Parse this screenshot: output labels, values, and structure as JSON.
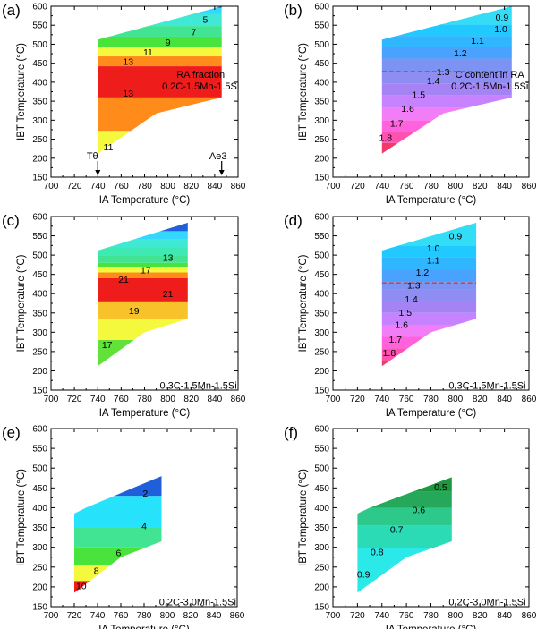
{
  "figure": {
    "panels": [
      {
        "label": "(a)",
        "xlabel": "IA Temperature (°C)",
        "ylabel": "IBT Temperature (°C)",
        "annotation_lines": [
          "RA fraction",
          "0.2C-1.5Mn-1.5Si"
        ],
        "markers": [
          "Tθ",
          "Ae3"
        ],
        "contour_labels": [
          "5",
          "7",
          "9",
          "11",
          "13",
          "13",
          "11"
        ]
      },
      {
        "label": "(b)",
        "xlabel": "IA Temperature (°C)",
        "ylabel": "IBT Temperature (°C)",
        "annotation_lines": [
          "C content in RA",
          "0.2C-1.5Mn-1.5Si"
        ],
        "contour_labels": [
          "0.9",
          "1.0",
          "1.1",
          "1.2",
          "1.3",
          "1.4",
          "1.5",
          "1.6",
          "1.7",
          "1.8"
        ]
      },
      {
        "label": "(c)",
        "xlabel": "IA Temperature (°C)",
        "ylabel": "IBT Temperature (°C)",
        "annotation_lines": [
          "0.3C-1.5Mn-1.5Si"
        ],
        "contour_labels": [
          "13",
          "17",
          "21",
          "21",
          "19",
          "17"
        ]
      },
      {
        "label": "(d)",
        "xlabel": "IA Temperature (°C)",
        "ylabel": "IBT Temperature (°C)",
        "annotation_lines": [
          "0.3C-1.5Mn-1.5Si"
        ],
        "contour_labels": [
          "0.9",
          "1.0",
          "1.1",
          "1.2",
          "1.3",
          "1.4",
          "1.5",
          "1.6",
          "1.7",
          "1.8"
        ]
      },
      {
        "label": "(e)",
        "xlabel": "IA Temperature (°C)",
        "ylabel": "IBT Temperature (°C)",
        "annotation_lines": [
          "0.2C-3.0Mn-1.5Si"
        ],
        "contour_labels": [
          "2",
          "4",
          "6",
          "8",
          "10"
        ]
      },
      {
        "label": "(f)",
        "xlabel": "IA Temperature (°C)",
        "ylabel": "IBT Temperature (°C)",
        "annotation_lines": [
          "0.2C-3.0Mn-1.5Si"
        ],
        "contour_labels": [
          "0.5",
          "0.6",
          "0.7",
          "0.8",
          "0.9"
        ]
      }
    ]
  },
  "chart_data": [
    {
      "panel": "(a)",
      "type": "heatmap",
      "xlim": [
        700,
        860
      ],
      "ylim": [
        150,
        600
      ],
      "xticks": [
        700,
        720,
        740,
        760,
        780,
        800,
        820,
        840,
        860
      ],
      "yticks": [
        150,
        200,
        250,
        300,
        350,
        400,
        450,
        500,
        550,
        600
      ],
      "region": {
        "x": [
          740,
          846
        ],
        "upper": [
          [
            740,
            512
          ],
          [
            846,
            600
          ]
        ],
        "lower": [
          [
            740,
            212
          ],
          [
            790,
            318
          ],
          [
            846,
            360
          ]
        ]
      },
      "bands": [
        {
          "y": [
            150,
            272
          ],
          "color": "#f4f93e"
        },
        {
          "y": [
            272,
            360
          ],
          "color": "#ff8c1a"
        },
        {
          "y": [
            360,
            442
          ],
          "color": "#ef1c1c"
        },
        {
          "y": [
            442,
            468
          ],
          "color": "#ff8c1a"
        },
        {
          "y": [
            468,
            492
          ],
          "color": "#f4f93e"
        },
        {
          "y": [
            492,
            520
          ],
          "color": "#49e43b"
        },
        {
          "y": [
            520,
            548
          ],
          "color": "#41e493"
        },
        {
          "y": [
            548,
            580
          ],
          "color": "#3fe9d6"
        },
        {
          "y": [
            580,
            596
          ],
          "color": "#34d8ff"
        },
        {
          "y": [
            596,
            602
          ],
          "color": "#1f5fdc"
        }
      ],
      "labels": [
        {
          "text": "5",
          "x": 832,
          "y": 566
        },
        {
          "text": "7",
          "x": 822,
          "y": 533
        },
        {
          "text": "9",
          "x": 800,
          "y": 506
        },
        {
          "text": "11",
          "x": 783,
          "y": 480
        },
        {
          "text": "13",
          "x": 766,
          "y": 455
        },
        {
          "text": "13",
          "x": 766,
          "y": 371
        },
        {
          "text": "11",
          "x": 749,
          "y": 230
        }
      ],
      "note": [
        828,
        390
      ],
      "markers": [
        {
          "text": "Tθ",
          "x": 740
        },
        {
          "text": "Ae3",
          "x": 846
        }
      ]
    },
    {
      "panel": "(b)",
      "type": "heatmap",
      "xlim": [
        700,
        860
      ],
      "ylim": [
        150,
        600
      ],
      "xticks": [
        700,
        720,
        740,
        760,
        780,
        800,
        820,
        840,
        860
      ],
      "yticks": [
        150,
        200,
        250,
        300,
        350,
        400,
        450,
        500,
        550,
        600
      ],
      "region": {
        "x": [
          740,
          846
        ],
        "upper": [
          [
            740,
            512
          ],
          [
            846,
            600
          ]
        ],
        "lower": [
          [
            740,
            212
          ],
          [
            790,
            318
          ],
          [
            846,
            360
          ]
        ]
      },
      "bands": [
        {
          "y": [
            150,
            240
          ],
          "color": "#f03a6b"
        },
        {
          "y": [
            240,
            270
          ],
          "color": "#ff52b0"
        },
        {
          "y": [
            270,
            300
          ],
          "color": "#ff62dc"
        },
        {
          "y": [
            300,
            332
          ],
          "color": "#f27ef7"
        },
        {
          "y": [
            332,
            365
          ],
          "color": "#c783ff"
        },
        {
          "y": [
            365,
            397
          ],
          "color": "#a683f4"
        },
        {
          "y": [
            397,
            428
          ],
          "color": "#8f8df2"
        },
        {
          "y": [
            428,
            462
          ],
          "color": "#7c93f4"
        },
        {
          "y": [
            462,
            492
          ],
          "color": "#4aa2ff"
        },
        {
          "y": [
            492,
            522
          ],
          "color": "#2fb6ff"
        },
        {
          "y": [
            522,
            552
          ],
          "color": "#20c9ff"
        },
        {
          "y": [
            552,
            602
          ],
          "color": "#33ddf6"
        }
      ],
      "dashed_y": 428,
      "labels": [
        {
          "text": "0.9",
          "x": 838,
          "y": 572
        },
        {
          "text": "1.0",
          "x": 837,
          "y": 541
        },
        {
          "text": "1.1",
          "x": 818,
          "y": 510
        },
        {
          "text": "1.2",
          "x": 804,
          "y": 478
        },
        {
          "text": "1.3",
          "x": 790,
          "y": 428
        },
        {
          "text": "1.4",
          "x": 782,
          "y": 404
        },
        {
          "text": "1.5",
          "x": 770,
          "y": 368
        },
        {
          "text": "1.6",
          "x": 761,
          "y": 332
        },
        {
          "text": "1.7",
          "x": 752,
          "y": 293
        },
        {
          "text": "1.8",
          "x": 743,
          "y": 255
        }
      ],
      "note": [
        828,
        390
      ]
    },
    {
      "panel": "(c)",
      "type": "heatmap",
      "xlim": [
        700,
        860
      ],
      "ylim": [
        150,
        600
      ],
      "xticks": [
        700,
        720,
        740,
        760,
        780,
        800,
        820,
        840,
        860
      ],
      "yticks": [
        150,
        200,
        250,
        300,
        350,
        400,
        450,
        500,
        550,
        600
      ],
      "region": {
        "x": [
          740,
          817
        ],
        "upper": [
          [
            740,
            512
          ],
          [
            817,
            584
          ]
        ],
        "lower": [
          [
            740,
            212
          ],
          [
            780,
            300
          ],
          [
            817,
            335
          ]
        ]
      },
      "bands": [
        {
          "y": [
            150,
            280
          ],
          "color": "#61e23a"
        },
        {
          "y": [
            280,
            335
          ],
          "color": "#f4f93e"
        },
        {
          "y": [
            335,
            380
          ],
          "color": "#f8c22a"
        },
        {
          "y": [
            380,
            440
          ],
          "color": "#ef1c1c"
        },
        {
          "y": [
            440,
            455
          ],
          "color": "#ff8c1a"
        },
        {
          "y": [
            455,
            470
          ],
          "color": "#f4f93e"
        },
        {
          "y": [
            470,
            480
          ],
          "color": "#49e43b"
        },
        {
          "y": [
            480,
            500
          ],
          "color": "#41e493"
        },
        {
          "y": [
            500,
            520
          ],
          "color": "#3fe9b2"
        },
        {
          "y": [
            520,
            540
          ],
          "color": "#3fe9d6"
        },
        {
          "y": [
            540,
            562
          ],
          "color": "#34d8ff"
        },
        {
          "y": [
            562,
            586
          ],
          "color": "#1f5fdc"
        }
      ],
      "labels": [
        {
          "text": "13",
          "x": 800,
          "y": 494
        },
        {
          "text": "17",
          "x": 781,
          "y": 462
        },
        {
          "text": "21",
          "x": 762,
          "y": 438
        },
        {
          "text": "21",
          "x": 800,
          "y": 400
        },
        {
          "text": "19",
          "x": 771,
          "y": 357
        },
        {
          "text": "17",
          "x": 748,
          "y": 268
        }
      ],
      "note": [
        826,
        163
      ]
    },
    {
      "panel": "(d)",
      "type": "heatmap",
      "xlim": [
        700,
        860
      ],
      "ylim": [
        150,
        600
      ],
      "xticks": [
        700,
        720,
        740,
        760,
        780,
        800,
        820,
        840,
        860
      ],
      "yticks": [
        150,
        200,
        250,
        300,
        350,
        400,
        450,
        500,
        550,
        600
      ],
      "region": {
        "x": [
          740,
          817
        ],
        "upper": [
          [
            740,
            512
          ],
          [
            817,
            584
          ]
        ],
        "lower": [
          [
            740,
            212
          ],
          [
            780,
            300
          ],
          [
            817,
            335
          ]
        ]
      },
      "bands": [
        {
          "y": [
            150,
            228
          ],
          "color": "#f03a6b"
        },
        {
          "y": [
            228,
            258
          ],
          "color": "#ff52b0"
        },
        {
          "y": [
            258,
            288
          ],
          "color": "#ff62dc"
        },
        {
          "y": [
            288,
            318
          ],
          "color": "#f27ef7"
        },
        {
          "y": [
            318,
            350
          ],
          "color": "#c783ff"
        },
        {
          "y": [
            350,
            382
          ],
          "color": "#a683f4"
        },
        {
          "y": [
            382,
            412
          ],
          "color": "#8f8df2"
        },
        {
          "y": [
            412,
            430
          ],
          "color": "#7c93f4"
        },
        {
          "y": [
            430,
            462
          ],
          "color": "#4aa2ff"
        },
        {
          "y": [
            462,
            495
          ],
          "color": "#2fb6ff"
        },
        {
          "y": [
            495,
            525
          ],
          "color": "#20c9ff"
        },
        {
          "y": [
            525,
            586
          ],
          "color": "#33ddf6"
        }
      ],
      "dashed_y": 428,
      "labels": [
        {
          "text": "0.9",
          "x": 800,
          "y": 550
        },
        {
          "text": "1.0",
          "x": 782,
          "y": 519
        },
        {
          "text": "1.1",
          "x": 782,
          "y": 488
        },
        {
          "text": "1.2",
          "x": 773,
          "y": 456
        },
        {
          "text": "1.3",
          "x": 766,
          "y": 423
        },
        {
          "text": "1.4",
          "x": 764,
          "y": 387
        },
        {
          "text": "1.5",
          "x": 759,
          "y": 352
        },
        {
          "text": "1.6",
          "x": 756,
          "y": 320
        },
        {
          "text": "1.7",
          "x": 751,
          "y": 282
        },
        {
          "text": "1.8",
          "x": 746,
          "y": 248
        }
      ],
      "note": [
        826,
        163
      ]
    },
    {
      "panel": "(e)",
      "type": "heatmap",
      "xlim": [
        700,
        860
      ],
      "ylim": [
        150,
        600
      ],
      "xticks": [
        700,
        720,
        740,
        760,
        780,
        800,
        820,
        840,
        860
      ],
      "yticks": [
        150,
        200,
        250,
        300,
        350,
        400,
        450,
        500,
        550,
        600
      ],
      "region": {
        "x": [
          720,
          795
        ],
        "upper": [
          [
            720,
            385
          ],
          [
            730,
            400
          ],
          [
            795,
            480
          ]
        ],
        "lower": [
          [
            720,
            185
          ],
          [
            760,
            275
          ],
          [
            795,
            315
          ]
        ]
      },
      "bands": [
        {
          "y": [
            150,
            215
          ],
          "color": "#ef1c1c"
        },
        {
          "y": [
            215,
            255
          ],
          "color": "#f4f93e"
        },
        {
          "y": [
            255,
            300
          ],
          "color": "#49e43b"
        },
        {
          "y": [
            300,
            350
          ],
          "color": "#41e493"
        },
        {
          "y": [
            350,
            430
          ],
          "color": "#26e2fa"
        },
        {
          "y": [
            430,
            482
          ],
          "color": "#1f5fdc"
        }
      ],
      "labels": [
        {
          "text": "2",
          "x": 781,
          "y": 437
        },
        {
          "text": "4",
          "x": 780,
          "y": 355
        },
        {
          "text": "6",
          "x": 758,
          "y": 287
        },
        {
          "text": "8",
          "x": 739,
          "y": 242
        },
        {
          "text": "10",
          "x": 726,
          "y": 203
        }
      ],
      "note": [
        826,
        163
      ]
    },
    {
      "panel": "(f)",
      "type": "heatmap",
      "xlim": [
        700,
        860
      ],
      "ylim": [
        150,
        600
      ],
      "xticks": [
        700,
        720,
        740,
        760,
        780,
        800,
        820,
        840,
        860
      ],
      "yticks": [
        150,
        200,
        250,
        300,
        350,
        400,
        450,
        500,
        550,
        600
      ],
      "region": {
        "x": [
          720,
          797
        ],
        "upper": [
          [
            720,
            385
          ],
          [
            730,
            400
          ],
          [
            797,
            477
          ]
        ],
        "lower": [
          [
            720,
            185
          ],
          [
            760,
            275
          ],
          [
            797,
            315
          ]
        ]
      },
      "bands": [
        {
          "y": [
            150,
            298
          ],
          "color": "#2ce9e9"
        },
        {
          "y": [
            298,
            355
          ],
          "color": "#2bdbb5"
        },
        {
          "y": [
            355,
            400
          ],
          "color": "#2dc98a"
        },
        {
          "y": [
            400,
            440
          ],
          "color": "#26a85a"
        },
        {
          "y": [
            440,
            480
          ],
          "color": "#1f9640"
        }
      ],
      "labels": [
        {
          "text": "0.5",
          "x": 788,
          "y": 453
        },
        {
          "text": "0.6",
          "x": 770,
          "y": 395
        },
        {
          "text": "0.7",
          "x": 752,
          "y": 346
        },
        {
          "text": "0.8",
          "x": 736,
          "y": 289
        },
        {
          "text": "0.9",
          "x": 725,
          "y": 233
        }
      ],
      "note": [
        826,
        163
      ]
    }
  ]
}
